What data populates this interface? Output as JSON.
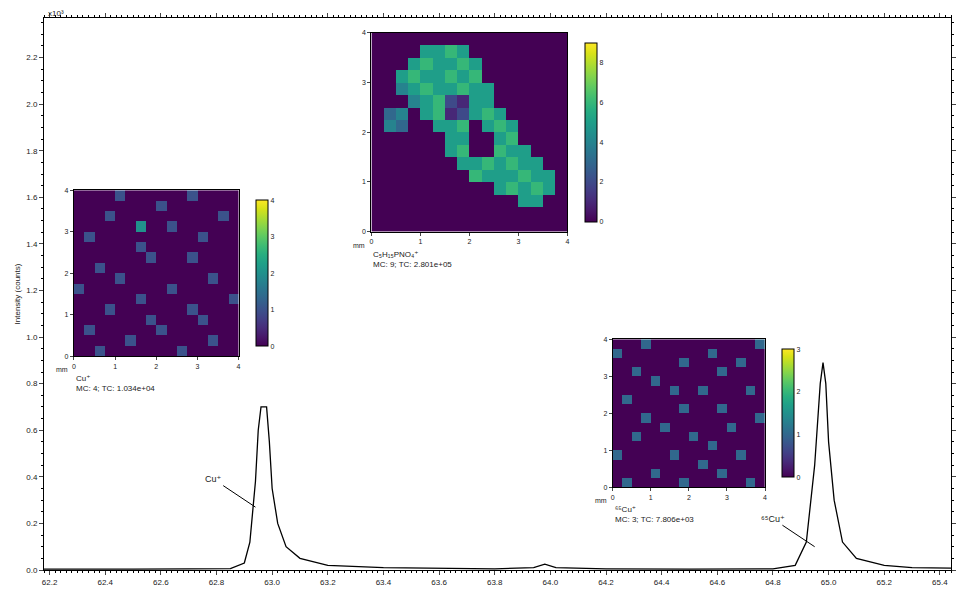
{
  "chart_data": [
    {
      "type": "line",
      "ylabel": "Intensity (counts)",
      "color": "#000000",
      "annotations": [
        {
          "text": "x10³"
        },
        {
          "text": "Cu⁺",
          "x": 62.94,
          "y": 0.27
        },
        {
          "text": "⁶⁵Cu⁺",
          "x": 64.95,
          "y": 0.1
        }
      ],
      "x": [
        62.18,
        62.3,
        62.5,
        62.7,
        62.85,
        62.9,
        62.92,
        62.94,
        62.95,
        62.96,
        62.98,
        62.99,
        63.0,
        63.02,
        63.05,
        63.1,
        63.2,
        63.4,
        63.6,
        63.8,
        63.94,
        63.98,
        64.02,
        64.2,
        64.5,
        64.8,
        64.88,
        64.92,
        64.95,
        64.97,
        64.98,
        64.99,
        65.0,
        65.02,
        65.05,
        65.1,
        65.2,
        65.3,
        65.44
      ],
      "values": [
        0.004,
        0.005,
        0.004,
        0.005,
        0.006,
        0.03,
        0.12,
        0.38,
        0.6,
        0.7,
        0.7,
        0.55,
        0.35,
        0.2,
        0.1,
        0.05,
        0.02,
        0.01,
        0.006,
        0.005,
        0.01,
        0.025,
        0.01,
        0.005,
        0.004,
        0.005,
        0.02,
        0.12,
        0.45,
        0.8,
        0.89,
        0.8,
        0.55,
        0.3,
        0.12,
        0.05,
        0.02,
        0.01,
        0.008
      ],
      "xlim": [
        62.18,
        65.44
      ],
      "ylim": [
        0,
        2.37
      ],
      "xticks": [
        62.2,
        62.4,
        62.6,
        62.8,
        {
          "value": 63,
          "label": "63.0"
        },
        63.2,
        63.4,
        63.6,
        63.8,
        {
          "value": 64,
          "label": "64.0"
        },
        64.2,
        64.4,
        64.6,
        64.8,
        {
          "value": 65,
          "label": "65.0"
        },
        65.2,
        65.4
      ],
      "yticks": [
        {
          "value": 0,
          "label": "0.0"
        },
        0.2,
        0.4,
        0.6,
        0.8,
        {
          "value": 1,
          "label": "1.0"
        },
        1.2,
        1.4,
        1.6,
        1.8,
        {
          "value": 2,
          "label": "2.0"
        },
        2.2
      ],
      "grid": false
    },
    {
      "type": "heatmap",
      "title": "Cu⁺",
      "subtitle": "MC: 4; TC: 1.034e+04",
      "xlabel": "mm",
      "xlim": [
        0,
        4
      ],
      "ylim": [
        0,
        4
      ],
      "xticks": [
        0,
        1,
        2,
        3,
        4
      ],
      "yticks": [
        0,
        1,
        2,
        3,
        4
      ],
      "colorbar_range": [
        0,
        4
      ],
      "colorbar_ticks": [
        0,
        1,
        2,
        3,
        4
      ],
      "cells": [
        [
          0,
          0,
          1,
          0,
          0,
          0,
          0,
          0,
          0,
          0,
          1,
          0,
          0,
          0,
          0,
          0
        ],
        [
          0,
          0,
          0,
          0,
          0,
          1,
          0,
          0,
          0,
          0,
          0,
          0,
          0,
          1,
          0,
          0
        ],
        [
          0,
          1,
          0,
          0,
          0,
          0,
          0,
          0,
          1,
          0,
          0,
          0,
          0,
          0,
          0,
          0
        ],
        [
          0,
          0,
          0,
          0,
          0,
          0,
          0,
          1,
          0,
          0,
          0,
          0,
          1,
          0,
          0,
          0
        ],
        [
          0,
          0,
          0,
          1,
          0,
          0,
          0,
          0,
          0,
          0,
          0,
          1,
          0,
          0,
          0,
          0
        ],
        [
          0,
          0,
          0,
          0,
          0,
          0,
          1,
          0,
          0,
          0,
          0,
          0,
          0,
          0,
          0,
          1
        ],
        [
          1,
          0,
          0,
          0,
          0,
          0,
          0,
          0,
          0,
          1,
          0,
          0,
          0,
          0,
          0,
          0
        ],
        [
          0,
          0,
          0,
          0,
          1,
          0,
          0,
          0,
          0,
          0,
          0,
          0,
          0,
          1,
          0,
          0
        ],
        [
          0,
          0,
          1,
          0,
          0,
          0,
          0,
          0,
          0,
          0,
          0,
          0,
          0,
          0,
          0,
          0
        ],
        [
          0,
          0,
          0,
          0,
          0,
          0,
          0,
          1,
          0,
          0,
          0,
          1,
          0,
          0,
          0,
          0
        ],
        [
          0,
          0,
          0,
          0,
          0,
          0,
          1,
          0,
          0,
          0,
          0,
          0,
          0,
          0,
          0,
          0
        ],
        [
          0,
          1,
          0,
          0,
          0,
          0,
          0,
          0,
          0,
          0,
          0,
          0,
          1,
          0,
          0,
          0
        ],
        [
          0,
          0,
          0,
          0,
          0,
          0,
          2,
          0,
          0,
          1,
          0,
          0,
          0,
          0,
          0,
          0
        ],
        [
          0,
          0,
          0,
          1,
          0,
          0,
          0,
          0,
          0,
          0,
          0,
          0,
          0,
          0,
          1,
          0
        ],
        [
          0,
          0,
          0,
          0,
          0,
          0,
          0,
          0,
          1,
          0,
          0,
          0,
          0,
          0,
          0,
          0
        ],
        [
          0,
          0,
          0,
          0,
          1,
          0,
          0,
          0,
          0,
          0,
          0,
          1,
          0,
          0,
          0,
          0
        ]
      ]
    },
    {
      "type": "heatmap",
      "title": "C₅H₁₅PNO₄⁺",
      "subtitle": "MC: 9; TC: 2.801e+05",
      "xlabel": "mm",
      "xlim": [
        0,
        4
      ],
      "ylim": [
        0,
        4
      ],
      "xticks": [
        0,
        1,
        2,
        3,
        4
      ],
      "yticks": [
        0,
        1,
        2,
        3,
        4
      ],
      "colorbar_range": [
        0,
        9
      ],
      "colorbar_ticks": [
        0,
        2,
        4,
        6,
        8
      ],
      "cells": [
        [
          0,
          0,
          0,
          0,
          0,
          0,
          0,
          0,
          0,
          0,
          0,
          0,
          0,
          0,
          0,
          0
        ],
        [
          0,
          0,
          0,
          0,
          0,
          0,
          0,
          0,
          0,
          0,
          0,
          0,
          0,
          0,
          0,
          0
        ],
        [
          0,
          0,
          0,
          0,
          0,
          0,
          0,
          0,
          0,
          0,
          0,
          0,
          5,
          5,
          0,
          0
        ],
        [
          0,
          0,
          0,
          0,
          0,
          0,
          0,
          0,
          0,
          0,
          5,
          6,
          5,
          6,
          5,
          0
        ],
        [
          0,
          0,
          0,
          0,
          0,
          0,
          0,
          0,
          6,
          5,
          5,
          5,
          6,
          5,
          5,
          0
        ],
        [
          0,
          0,
          0,
          0,
          0,
          0,
          0,
          5,
          5,
          6,
          5,
          6,
          5,
          5,
          0,
          0
        ],
        [
          0,
          0,
          0,
          0,
          0,
          0,
          5,
          6,
          0,
          0,
          6,
          5,
          5,
          0,
          0,
          0
        ],
        [
          0,
          0,
          0,
          0,
          0,
          0,
          5,
          5,
          0,
          0,
          5,
          6,
          0,
          0,
          0,
          0
        ],
        [
          0,
          4,
          3,
          0,
          0,
          5,
          5,
          6,
          0,
          5,
          6,
          5,
          0,
          0,
          0,
          0
        ],
        [
          0,
          3,
          4,
          0,
          5,
          6,
          1,
          2,
          5,
          6,
          5,
          0,
          0,
          0,
          0,
          0
        ],
        [
          0,
          0,
          0,
          4,
          5,
          6,
          2,
          1,
          5,
          5,
          0,
          0,
          0,
          0,
          0,
          0
        ],
        [
          0,
          0,
          4,
          5,
          6,
          5,
          5,
          6,
          5,
          5,
          0,
          0,
          0,
          0,
          0,
          0
        ],
        [
          0,
          0,
          5,
          6,
          5,
          5,
          6,
          5,
          6,
          0,
          0,
          0,
          0,
          0,
          0,
          0
        ],
        [
          0,
          0,
          0,
          5,
          6,
          5,
          5,
          6,
          5,
          0,
          0,
          0,
          0,
          0,
          0,
          0
        ],
        [
          0,
          0,
          0,
          0,
          5,
          5,
          6,
          5,
          0,
          0,
          0,
          0,
          0,
          0,
          0,
          0
        ],
        [
          0,
          0,
          0,
          0,
          0,
          0,
          0,
          0,
          0,
          0,
          0,
          0,
          0,
          0,
          0,
          0
        ]
      ]
    },
    {
      "type": "heatmap",
      "title": "⁶⁵Cu⁺",
      "subtitle": "MC: 3; TC: 7.806e+03",
      "xlabel": "mm",
      "xlim": [
        0,
        4
      ],
      "ylim": [
        0,
        4
      ],
      "xticks": [
        0,
        1,
        2,
        3,
        4
      ],
      "yticks": [
        0,
        1,
        2,
        3,
        4
      ],
      "colorbar_range": [
        0,
        3
      ],
      "colorbar_ticks": [
        0,
        1,
        2,
        3
      ],
      "cells": [
        [
          0,
          1,
          0,
          0,
          0,
          0,
          0,
          1,
          0,
          0,
          0,
          0,
          0,
          0,
          1,
          0
        ],
        [
          0,
          0,
          0,
          0,
          1,
          0,
          0,
          0,
          0,
          0,
          0,
          1,
          0,
          0,
          0,
          0
        ],
        [
          0,
          0,
          0,
          0,
          0,
          0,
          0,
          0,
          0,
          1,
          0,
          0,
          0,
          0,
          0,
          0
        ],
        [
          1,
          0,
          0,
          0,
          0,
          0,
          1,
          0,
          0,
          0,
          0,
          0,
          0,
          1,
          0,
          0
        ],
        [
          0,
          0,
          0,
          0,
          0,
          0,
          0,
          0,
          0,
          0,
          1,
          0,
          0,
          0,
          0,
          0
        ],
        [
          0,
          0,
          1,
          0,
          0,
          0,
          0,
          0,
          1,
          0,
          0,
          0,
          0,
          0,
          0,
          0
        ],
        [
          0,
          0,
          0,
          0,
          0,
          1,
          0,
          0,
          0,
          0,
          0,
          0,
          1,
          0,
          0,
          0
        ],
        [
          0,
          0,
          0,
          1,
          0,
          0,
          0,
          0,
          0,
          0,
          0,
          0,
          0,
          0,
          0,
          1
        ],
        [
          0,
          0,
          0,
          0,
          0,
          0,
          0,
          1,
          0,
          0,
          0,
          1,
          0,
          0,
          0,
          0
        ],
        [
          0,
          1,
          0,
          0,
          0,
          0,
          0,
          0,
          0,
          0,
          0,
          0,
          0,
          0,
          0,
          0
        ],
        [
          0,
          0,
          0,
          0,
          0,
          0,
          1,
          0,
          0,
          1,
          0,
          0,
          0,
          0,
          1,
          0
        ],
        [
          0,
          0,
          0,
          0,
          1,
          0,
          0,
          0,
          0,
          0,
          0,
          0,
          0,
          0,
          0,
          0
        ],
        [
          0,
          0,
          1,
          0,
          0,
          0,
          0,
          0,
          0,
          0,
          0,
          1,
          0,
          0,
          0,
          0
        ],
        [
          0,
          0,
          0,
          0,
          0,
          0,
          0,
          1,
          0,
          0,
          0,
          0,
          0,
          1,
          0,
          0
        ],
        [
          1,
          0,
          0,
          0,
          0,
          0,
          0,
          0,
          0,
          0,
          1,
          0,
          0,
          0,
          0,
          0
        ],
        [
          0,
          0,
          0,
          1,
          0,
          0,
          0,
          0,
          0,
          0,
          0,
          0,
          0,
          0,
          0,
          1
        ]
      ]
    }
  ]
}
